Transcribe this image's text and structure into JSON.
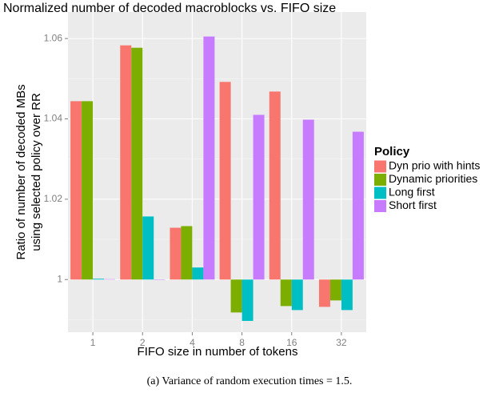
{
  "chart_data": {
    "type": "bar",
    "title": "Normalized number of decoded macroblocks vs. FIFO size",
    "xlabel": "FIFO size in number of tokens",
    "ylabel": [
      "Ratio of number of decoded MBs",
      "using selected policy over RR"
    ],
    "caption": "(a) Variance of random execution times = 1.5.",
    "legend_title": "Policy",
    "categories": [
      "1",
      "2",
      "4",
      "8",
      "16",
      "32"
    ],
    "series": [
      {
        "name": "Dyn prio with hints",
        "color": "#F8766D",
        "values": [
          1.0444,
          1.0583,
          1.0129,
          1.0492,
          1.0468,
          0.9932
        ]
      },
      {
        "name": "Dynamic priorities",
        "color": "#7CAE00",
        "values": [
          1.0444,
          1.0577,
          1.0133,
          0.9918,
          0.9934,
          0.9948
        ]
      },
      {
        "name": "Long first",
        "color": "#00BFC4",
        "values": [
          1.0002,
          1.0157,
          1.003,
          0.9897,
          0.9924,
          0.9924
        ]
      },
      {
        "name": "Short first",
        "color": "#C77CFF",
        "values": [
          1.0001,
          0.9999,
          1.0605,
          1.041,
          1.0398,
          1.0368
        ]
      }
    ],
    "ylim": [
      0.9869,
      1.0666
    ],
    "yticks": [
      1,
      1.02,
      1.04,
      1.06
    ],
    "grid": true
  }
}
